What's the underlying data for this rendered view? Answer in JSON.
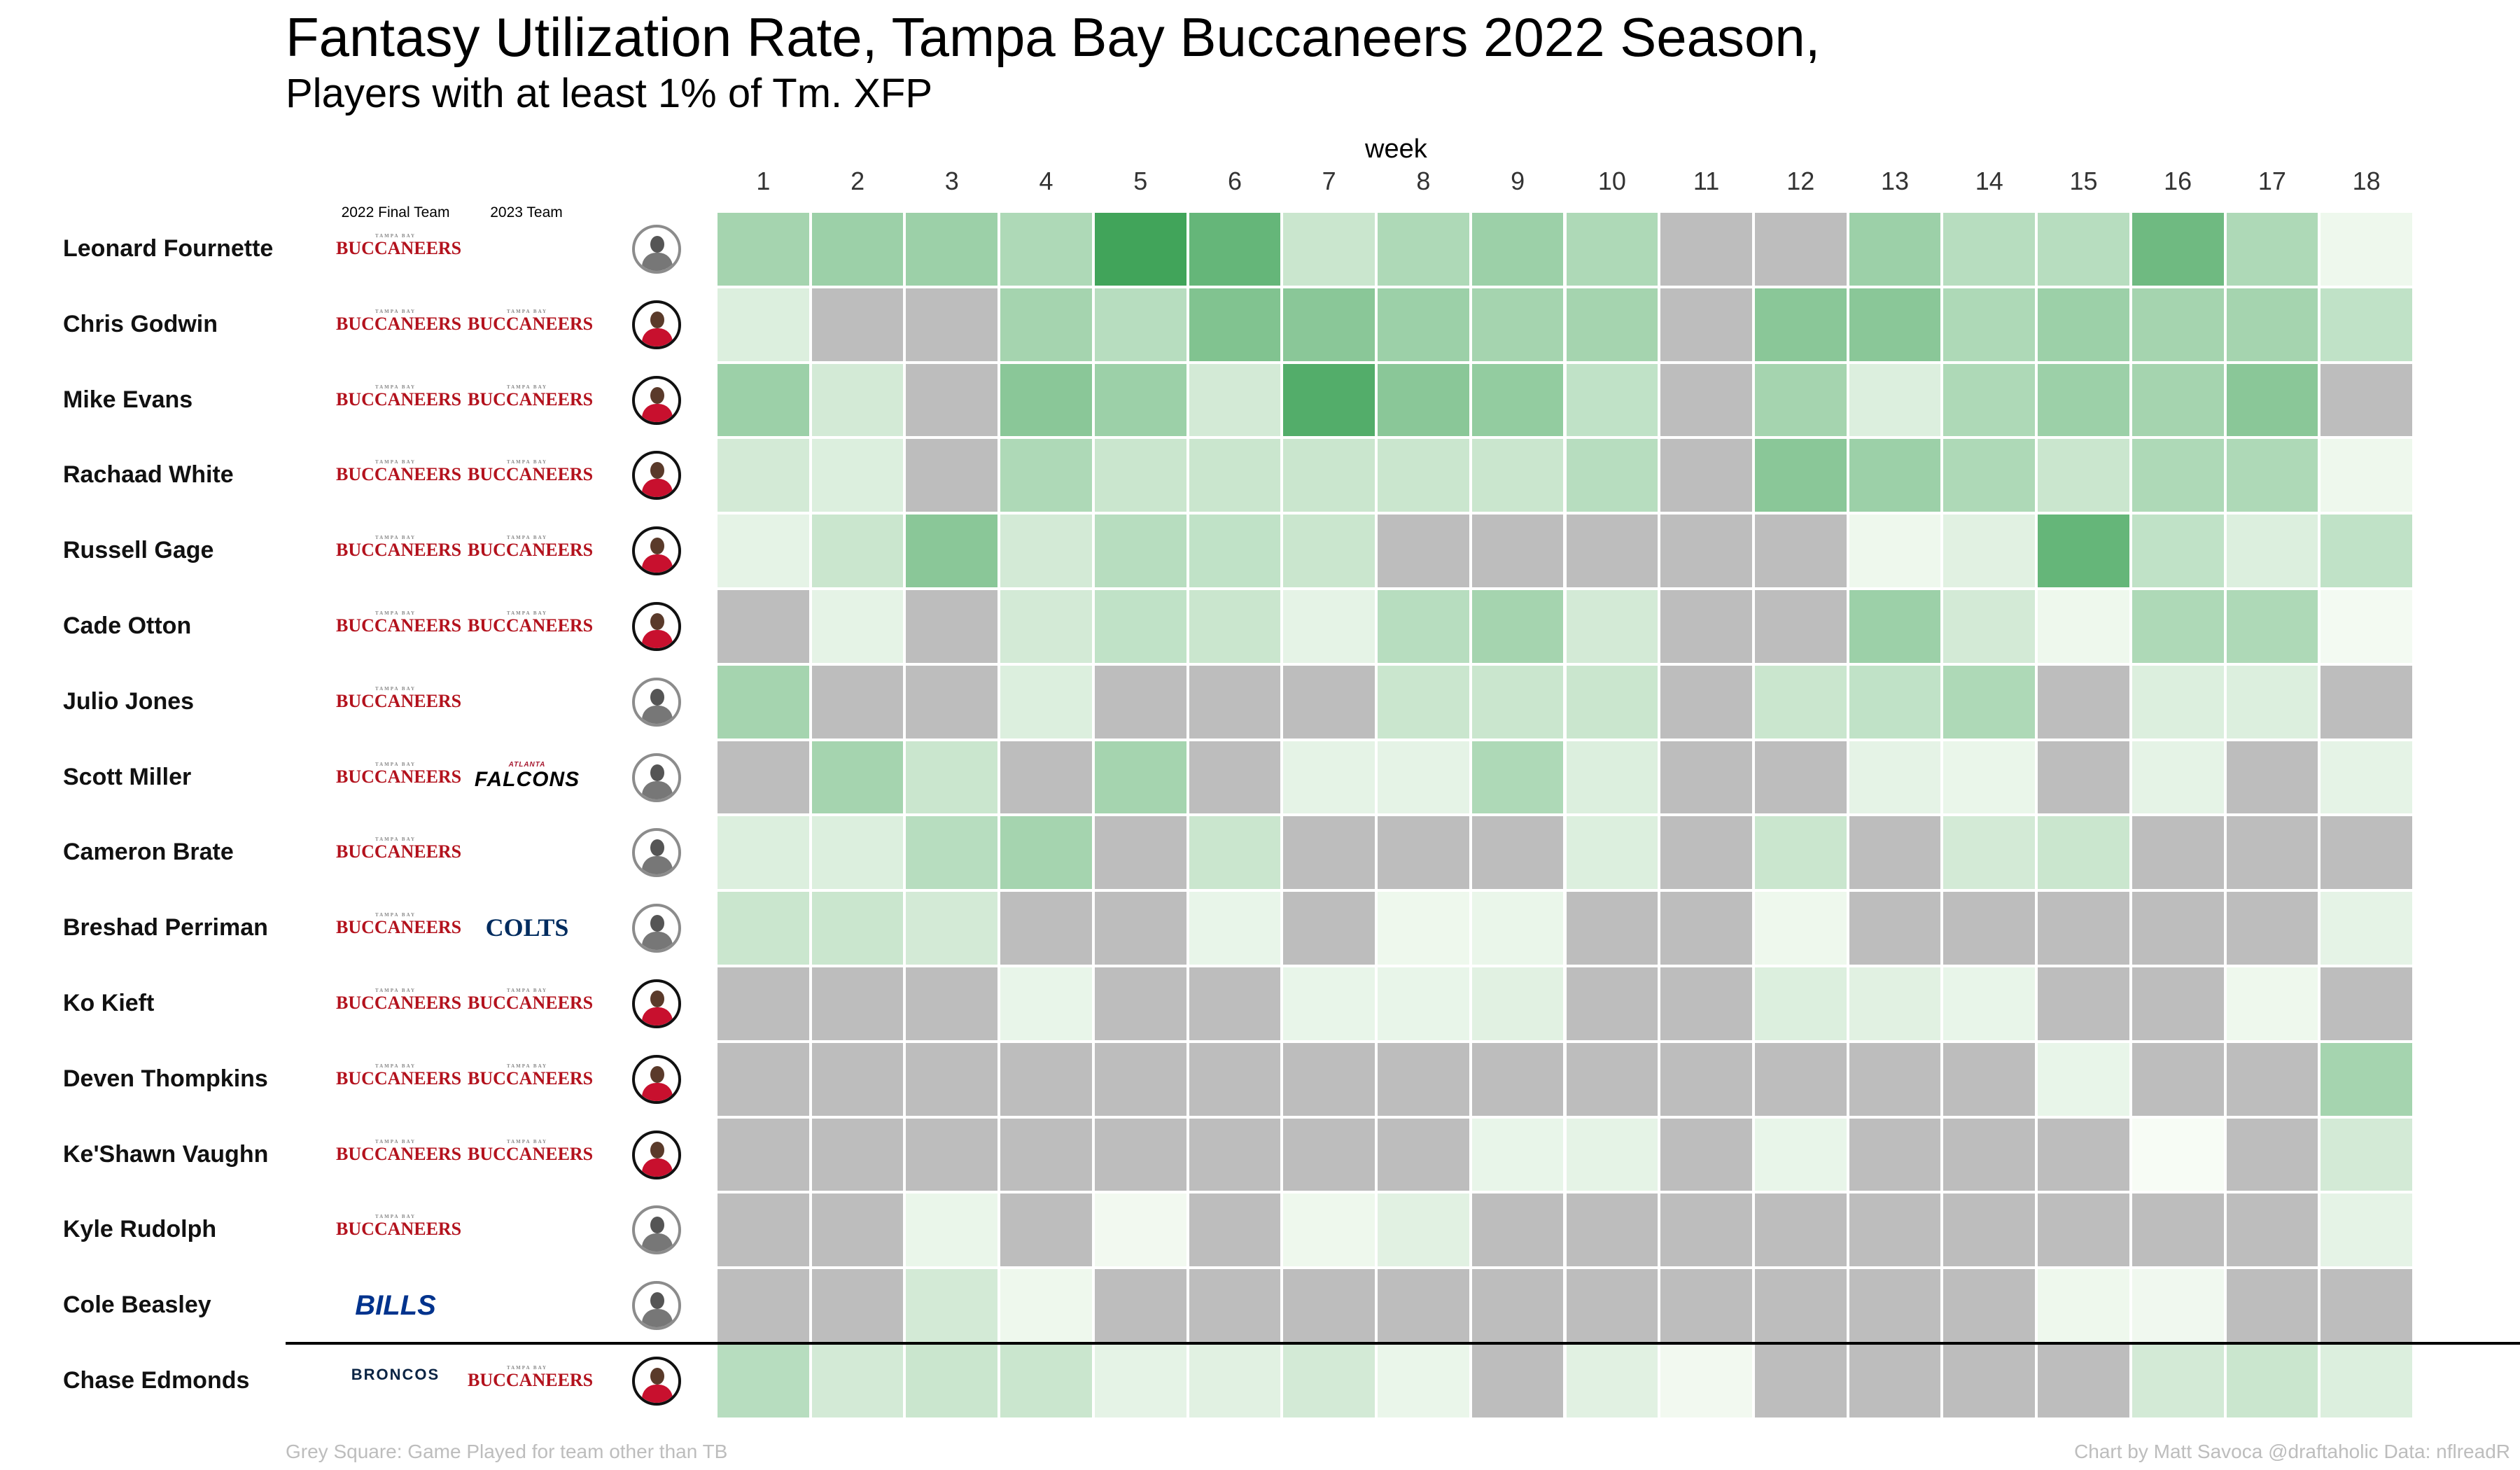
{
  "title": "Fantasy Utilization Rate, Tampa Bay Buccaneers 2022 Season,",
  "subtitle": "Players with at least 1% of Tm. XFP",
  "week_label": "week",
  "column_headers": {
    "final_team": "2022 Final Team",
    "team_2023": "2023 Team"
  },
  "footer": {
    "left": "Grey Square: Game Played for team other than TB",
    "right": "Chart by Matt Savoca    @draftaholic    Data: nflreadR"
  },
  "team_logos": {
    "TB": "BUCCANEERS",
    "ATL": "FALCONS",
    "IND": "COLTS",
    "BUF": "BILLS",
    "DEN": "BRONCOS"
  },
  "colors": {
    "grey_other_team": "#bdbdbd",
    "scale_low": "#f7fcf5",
    "scale_high": "#41a45a",
    "buccaneers_red": "#b3121d"
  },
  "chart_data": {
    "type": "heatmap",
    "x": [
      1,
      2,
      3,
      4,
      5,
      6,
      7,
      8,
      9,
      10,
      11,
      12,
      13,
      14,
      15,
      16,
      17,
      18
    ],
    "value_meaning": "null = grey square (game played for team other than TB); 0 = no TB usage; 1 = highest utilization intensity",
    "rows": [
      {
        "player": "Leonard Fournette",
        "team_2022": "TB",
        "team_2023": "",
        "avatar": "grey",
        "values": [
          0.45,
          0.5,
          0.5,
          0.4,
          1.0,
          0.8,
          0.25,
          0.4,
          0.5,
          0.4,
          null,
          null,
          0.5,
          0.35,
          0.35,
          0.75,
          0.4,
          0.05
        ]
      },
      {
        "player": "Chris Godwin",
        "team_2022": "TB",
        "team_2023": "TB",
        "avatar": "color",
        "values": [
          0.15,
          null,
          null,
          0.45,
          0.35,
          0.65,
          0.6,
          0.5,
          0.45,
          0.45,
          null,
          0.6,
          0.6,
          0.4,
          0.5,
          0.45,
          0.45,
          0.3
        ]
      },
      {
        "player": "Mike Evans",
        "team_2022": "TB",
        "team_2023": "TB",
        "avatar": "color",
        "values": [
          0.5,
          0.2,
          null,
          0.6,
          0.5,
          0.2,
          0.9,
          0.6,
          0.55,
          0.3,
          null,
          0.45,
          0.15,
          0.4,
          0.5,
          0.45,
          0.6,
          null
        ]
      },
      {
        "player": "Rachaad White",
        "team_2022": "TB",
        "team_2023": "TB",
        "avatar": "color",
        "values": [
          0.2,
          0.15,
          null,
          0.4,
          0.25,
          0.25,
          0.25,
          0.25,
          0.25,
          0.35,
          null,
          0.6,
          0.5,
          0.4,
          0.25,
          0.4,
          0.4,
          0.05
        ]
      },
      {
        "player": "Russell Gage",
        "team_2022": "TB",
        "team_2023": "TB",
        "avatar": "color",
        "values": [
          0.1,
          0.25,
          0.6,
          0.2,
          0.35,
          0.3,
          0.25,
          null,
          null,
          null,
          null,
          null,
          0.05,
          0.12,
          0.8,
          0.3,
          0.15,
          0.3
        ]
      },
      {
        "player": "Cade Otton",
        "team_2022": "TB",
        "team_2023": "TB",
        "avatar": "color",
        "values": [
          null,
          0.1,
          null,
          0.2,
          0.3,
          0.25,
          0.1,
          0.35,
          0.45,
          0.2,
          null,
          null,
          0.5,
          0.2,
          0.05,
          0.4,
          0.4,
          0.02
        ]
      },
      {
        "player": "Julio Jones",
        "team_2022": "TB",
        "team_2023": "",
        "avatar": "grey",
        "values": [
          0.45,
          null,
          null,
          0.15,
          null,
          null,
          null,
          0.25,
          0.25,
          0.25,
          null,
          0.25,
          0.3,
          0.4,
          null,
          0.15,
          0.15,
          null
        ]
      },
      {
        "player": "Scott Miller",
        "team_2022": "TB",
        "team_2023": "ATL",
        "avatar": "grey",
        "values": [
          null,
          0.45,
          0.25,
          null,
          0.45,
          null,
          0.1,
          0.1,
          0.4,
          0.15,
          null,
          null,
          0.1,
          0.07,
          null,
          0.1,
          null,
          0.1
        ]
      },
      {
        "player": "Cameron Brate",
        "team_2022": "TB",
        "team_2023": "",
        "avatar": "grey",
        "values": [
          0.15,
          0.15,
          0.35,
          0.45,
          null,
          0.25,
          null,
          null,
          null,
          0.15,
          null,
          0.25,
          null,
          0.2,
          0.25,
          null,
          null,
          null
        ]
      },
      {
        "player": "Breshad Perriman",
        "team_2022": "TB",
        "team_2023": "IND",
        "avatar": "grey",
        "values": [
          0.25,
          0.25,
          0.2,
          null,
          null,
          0.08,
          null,
          0.05,
          0.07,
          null,
          null,
          0.05,
          null,
          null,
          null,
          null,
          null,
          0.1
        ]
      },
      {
        "player": "Ko Kieft",
        "team_2022": "TB",
        "team_2023": "TB",
        "avatar": "color",
        "values": [
          null,
          null,
          null,
          0.08,
          null,
          null,
          0.08,
          0.08,
          0.12,
          null,
          null,
          0.15,
          0.12,
          0.08,
          null,
          null,
          0.05,
          null
        ]
      },
      {
        "player": "Deven Thompkins",
        "team_2022": "TB",
        "team_2023": "TB",
        "avatar": "color",
        "values": [
          null,
          null,
          null,
          null,
          null,
          null,
          null,
          null,
          null,
          null,
          null,
          null,
          null,
          null,
          0.08,
          null,
          null,
          0.45
        ]
      },
      {
        "player": "Ke'Shawn Vaughn",
        "team_2022": "TB",
        "team_2023": "TB",
        "avatar": "color",
        "values": [
          null,
          null,
          null,
          null,
          null,
          null,
          null,
          null,
          0.08,
          0.1,
          null,
          0.08,
          null,
          null,
          null,
          0.0,
          null,
          0.2
        ]
      },
      {
        "player": "Kyle Rudolph",
        "team_2022": "TB",
        "team_2023": "",
        "avatar": "grey",
        "values": [
          null,
          null,
          0.07,
          null,
          0.03,
          null,
          0.05,
          0.12,
          null,
          null,
          null,
          null,
          null,
          null,
          null,
          null,
          null,
          0.1
        ]
      },
      {
        "player": "Cole Beasley",
        "team_2022": "BUF",
        "team_2023": "",
        "avatar": "grey",
        "values": [
          null,
          null,
          0.2,
          0.05,
          null,
          null,
          null,
          null,
          null,
          null,
          null,
          null,
          null,
          null,
          0.05,
          0.04,
          null,
          null
        ]
      },
      {
        "player": "Chase Edmonds",
        "team_2022": "DEN",
        "team_2023": "TB",
        "avatar": "color",
        "values": [
          0.35,
          0.2,
          0.25,
          0.25,
          0.1,
          0.12,
          0.2,
          0.07,
          null,
          0.12,
          0.03,
          null,
          null,
          null,
          null,
          0.2,
          0.25,
          0.15
        ]
      }
    ]
  }
}
